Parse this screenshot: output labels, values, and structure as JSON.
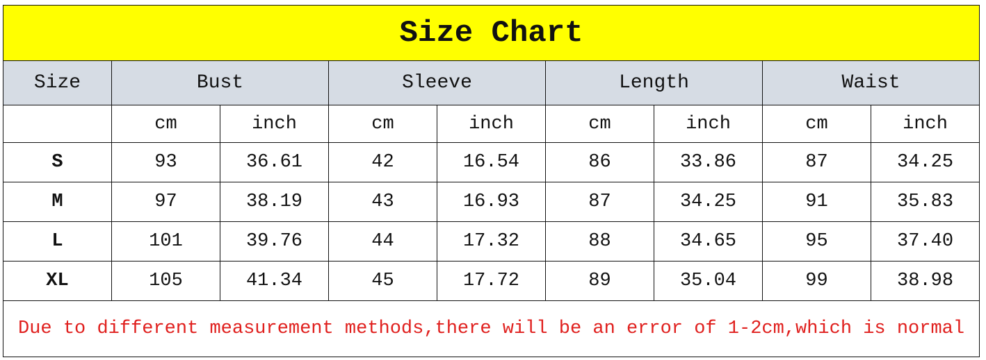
{
  "title": "Size Chart",
  "headers": {
    "size": "Size",
    "groups": [
      "Bust",
      "Sleeve",
      "Length",
      "Waist"
    ]
  },
  "units": [
    "cm",
    "inch",
    "cm",
    "inch",
    "cm",
    "inch",
    "cm",
    "inch"
  ],
  "rows": [
    {
      "size": "S",
      "values": [
        "93",
        "36.61",
        "42",
        "16.54",
        "86",
        "33.86",
        "87",
        "34.25"
      ]
    },
    {
      "size": "M",
      "values": [
        "97",
        "38.19",
        "43",
        "16.93",
        "87",
        "34.25",
        "91",
        "35.83"
      ]
    },
    {
      "size": "L",
      "values": [
        "101",
        "39.76",
        "44",
        "17.32",
        "88",
        "34.65",
        "95",
        "37.40"
      ]
    },
    {
      "size": "XL",
      "values": [
        "105",
        "41.34",
        "45",
        "17.72",
        "89",
        "35.04",
        "99",
        "38.98"
      ]
    }
  ],
  "note": "Due to different measurement methods,there will be an error of 1-2cm,which is normal",
  "colors": {
    "title_bg": "#ffff00",
    "header_bg": "#d6dce4",
    "note_text": "#e0201e"
  }
}
